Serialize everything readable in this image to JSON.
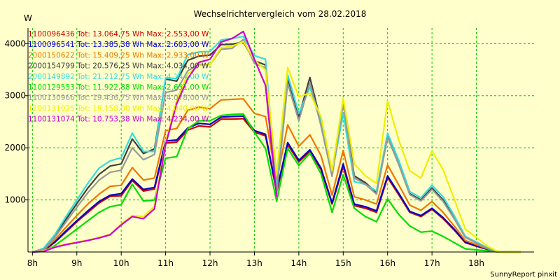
{
  "chart_data": {
    "type": "line",
    "title": "Wechselrichtervergleich vom 28.02.2018",
    "ylabel": "W",
    "credit": "SunnyReport pinxit",
    "x_ticks": [
      "8h",
      "9h",
      "10h",
      "11h",
      "12h",
      "13h",
      "14h",
      "15h",
      "16h",
      "17h",
      "18h"
    ],
    "y_ticks": [
      1000,
      2000,
      3000,
      4000
    ],
    "ylim": [
      0,
      4300
    ],
    "xlim": [
      7.9,
      19.3
    ],
    "grid": true,
    "x": [
      8.0,
      8.25,
      8.5,
      8.75,
      9.0,
      9.25,
      9.5,
      9.75,
      10.0,
      10.25,
      10.5,
      10.75,
      11.0,
      11.25,
      11.5,
      11.75,
      12.0,
      12.25,
      12.5,
      12.75,
      13.0,
      13.25,
      13.5,
      13.75,
      14.0,
      14.25,
      14.5,
      14.75,
      15.0,
      15.25,
      15.5,
      15.75,
      16.0,
      16.25,
      16.5,
      16.75,
      17.0,
      17.25,
      17.5,
      17.75,
      18.0,
      18.25,
      18.5,
      18.75,
      19.0
    ],
    "series": [
      {
        "name": "1100096436 Tot: 13.064,75 Wh Max: 2.553,00 W",
        "color": "#cc0000",
        "values": [
          0,
          30,
          180,
          380,
          580,
          760,
          940,
          1070,
          1080,
          1370,
          1170,
          1210,
          2090,
          2110,
          2340,
          2420,
          2400,
          2550,
          2550,
          2560,
          2300,
          2230,
          1150,
          2060,
          1730,
          1930,
          1580,
          920,
          1640,
          890,
          840,
          760,
          1430,
          1100,
          760,
          680,
          820,
          640,
          420,
          180,
          110,
          50,
          0,
          0,
          0
        ]
      },
      {
        "name": "1100096541 Tot: 13.385,38 Wh Max: 2.603,00 W",
        "color": "#0000cc",
        "values": [
          0,
          30,
          190,
          400,
          600,
          790,
          970,
          1090,
          1120,
          1400,
          1200,
          1240,
          2130,
          2150,
          2380,
          2470,
          2450,
          2590,
          2600,
          2610,
          2330,
          2260,
          1180,
          2100,
          1760,
          1960,
          1610,
          940,
          1690,
          920,
          870,
          790,
          1460,
          1130,
          780,
          700,
          840,
          660,
          440,
          190,
          120,
          50,
          0,
          0,
          0
        ]
      },
      {
        "name": "2000150622 Tot: 15.409,25 Wh Max: 2.933,00 W",
        "color": "#ee7700",
        "values": [
          0,
          40,
          230,
          470,
          700,
          920,
          1110,
          1260,
          1280,
          1620,
          1380,
          1420,
          2330,
          2370,
          2720,
          2780,
          2750,
          2920,
          2930,
          2940,
          2660,
          2600,
          1360,
          2440,
          2030,
          2250,
          1850,
          1090,
          1950,
          1060,
          1000,
          920,
          1670,
          1290,
          900,
          800,
          970,
          760,
          500,
          220,
          140,
          60,
          0,
          0,
          0
        ]
      },
      {
        "name": "2000154799 Tot: 20.576,25 Wh Max: 4.034,00 W",
        "color": "#404040",
        "values": [
          0,
          60,
          300,
          620,
          930,
          1230,
          1490,
          1650,
          1690,
          2170,
          1890,
          1980,
          3320,
          3280,
          3680,
          3760,
          3780,
          3980,
          3990,
          4030,
          3670,
          3590,
          1160,
          3320,
          2600,
          3350,
          2490,
          1480,
          2900,
          1460,
          1330,
          1140,
          2250,
          1710,
          1120,
          1000,
          1230,
          1000,
          660,
          290,
          180,
          70,
          0,
          0,
          0
        ]
      },
      {
        "name": "2000149892 Tot: 21.212,75 Wh Max: 4.144,00 W",
        "color": "#33dddd",
        "values": [
          0,
          70,
          330,
          670,
          1000,
          1320,
          1610,
          1750,
          1810,
          2280,
          1930,
          1930,
          3340,
          3330,
          3790,
          3840,
          3850,
          4070,
          4100,
          4140,
          3770,
          3700,
          1190,
          3400,
          2660,
          3160,
          2540,
          1500,
          2660,
          1350,
          1300,
          1170,
          2280,
          1760,
          1160,
          1040,
          1280,
          1060,
          700,
          300,
          190,
          80,
          0,
          0,
          0
        ]
      },
      {
        "name": "1100129553 Tot: 11.922,88 Wh Max: 2.651,00 W",
        "color": "#00dd00",
        "values": [
          0,
          20,
          120,
          280,
          440,
          600,
          760,
          870,
          910,
          1300,
          980,
          1000,
          1800,
          1830,
          2370,
          2520,
          2520,
          2620,
          2640,
          2650,
          2300,
          1990,
          970,
          1990,
          1660,
          1900,
          1500,
          760,
          1480,
          840,
          680,
          580,
          1020,
          720,
          500,
          380,
          400,
          300,
          180,
          60,
          40,
          20,
          0,
          0,
          0
        ]
      },
      {
        "name": "1100130966 Tot: 19.436,75 Wh Max: 4.078,00 W",
        "color": "#999999",
        "values": [
          0,
          50,
          280,
          570,
          860,
          1140,
          1380,
          1530,
          1570,
          2000,
          1770,
          1870,
          3060,
          3110,
          3480,
          3600,
          3600,
          3890,
          3910,
          4080,
          3620,
          3540,
          1120,
          3240,
          2520,
          3250,
          2420,
          1450,
          2850,
          1420,
          1300,
          1110,
          2200,
          1680,
          1100,
          980,
          1200,
          970,
          640,
          280,
          170,
          70,
          0,
          0,
          0
        ]
      },
      {
        "name": "1100131025 Tot: 19.158,00 Wh Max: 4.040,00 W",
        "color": "#eeee00",
        "values": [
          0,
          20,
          100,
          150,
          190,
          230,
          280,
          340,
          540,
          700,
          680,
          880,
          2100,
          2920,
          3420,
          3580,
          3600,
          3920,
          3950,
          4040,
          3690,
          3490,
          1500,
          3540,
          2980,
          3050,
          2600,
          1560,
          2950,
          1690,
          1460,
          1320,
          2900,
          2150,
          1560,
          1420,
          1940,
          1580,
          1020,
          440,
          280,
          110,
          0,
          0,
          0
        ]
      },
      {
        "name": "1100131074 Tot: 10.753,38 Wh Max: 4.234,00 W",
        "color": "#cc00cc",
        "values": [
          0,
          10,
          90,
          140,
          180,
          220,
          270,
          330,
          520,
          680,
          640,
          830,
          2060,
          2850,
          3330,
          3640,
          3700,
          4030,
          4100,
          4234,
          3700,
          3200,
          1060,
          null,
          null,
          null,
          null,
          null,
          null,
          null,
          null,
          null,
          null,
          null,
          null,
          null,
          null,
          null,
          null,
          null,
          null,
          null,
          null,
          null,
          null
        ]
      }
    ]
  }
}
